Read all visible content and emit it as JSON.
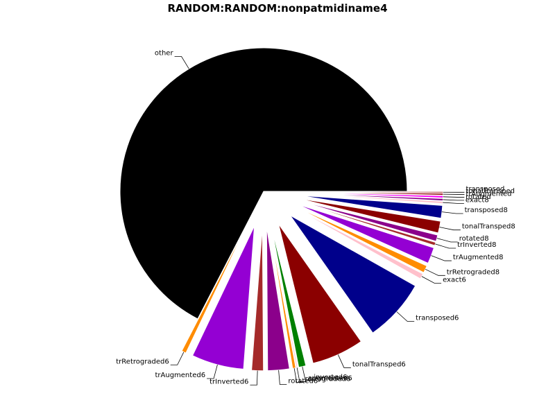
{
  "chart_data": {
    "type": "pie",
    "title": "RANDOM:RANDOM:nonpatmidiname4",
    "start_angle_deg": 0,
    "direction": "counterclockwise",
    "slices": [
      {
        "label": "other",
        "value": 66.5,
        "color": "#000000",
        "explode": 0
      },
      {
        "label": "trRetrograded6",
        "value": 0.5,
        "color": "#ff8c00",
        "explode": 0.25
      },
      {
        "label": "trAugmented6",
        "value": 5.8,
        "color": "#9400d3",
        "explode": 0.25
      },
      {
        "label": "trInverted6",
        "value": 1.3,
        "color": "#a52a2a",
        "explode": 0.25
      },
      {
        "label": "rotated6",
        "value": 2.4,
        "color": "#8b008b",
        "explode": 0.25
      },
      {
        "label": "retrograded6",
        "value": 0.35,
        "color": "#ff8c00",
        "explode": 0.25
      },
      {
        "label": "augmented6",
        "value": 0.15,
        "color": "#ffc0cb",
        "explode": 0.25
      },
      {
        "label": "inverted6",
        "value": 0.8,
        "color": "#008000",
        "explode": 0.25
      },
      {
        "label": "tonalTransped6",
        "value": 5.8,
        "color": "#8b0000",
        "explode": 0.25
      },
      {
        "label": "transposed6",
        "value": 7.0,
        "color": "#00008b",
        "explode": 0.25
      },
      {
        "label": "exact6",
        "value": 0.6,
        "color": "#ffc0cb",
        "explode": 0.25
      },
      {
        "label": "trRetrograded8",
        "value": 0.8,
        "color": "#ff8c00",
        "explode": 0.25
      },
      {
        "label": "trAugmented8",
        "value": 1.8,
        "color": "#9400d3",
        "explode": 0.25
      },
      {
        "label": "trInverted8",
        "value": 0.35,
        "color": "#a52a2a",
        "explode": 0.25
      },
      {
        "label": "rotated8",
        "value": 0.7,
        "color": "#8b008b",
        "explode": 0.25
      },
      {
        "label": "tonalTransped8",
        "value": 1.3,
        "color": "#8b0000",
        "explode": 0.25
      },
      {
        "label": "transposed8",
        "value": 1.4,
        "color": "#00008b",
        "explode": 0.25
      },
      {
        "label": "exact8",
        "value": 0.25,
        "color": "#ffc0cb",
        "explode": 0.25
      },
      {
        "label": "rotated",
        "value": 0.25,
        "color": "#8b008b",
        "explode": 0.25
      },
      {
        "label": "trAugmented",
        "value": 0.25,
        "color": "#ff00ff",
        "explode": 0.25
      },
      {
        "label": "tonalTransped",
        "value": 0.2,
        "color": "#8b0000",
        "explode": 0.25
      },
      {
        "label": "transposed",
        "value": 0.15,
        "color": "#a52a2a",
        "explode": 0.25
      }
    ]
  }
}
